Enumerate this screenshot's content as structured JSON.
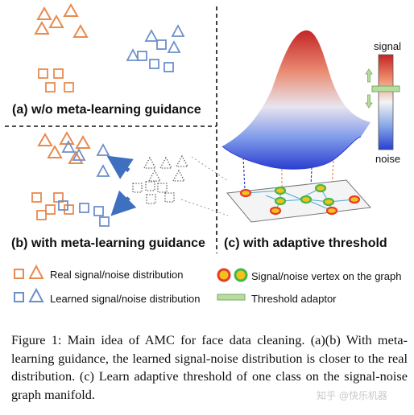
{
  "panels": {
    "a_label": "(a) w/o meta-learning guidance",
    "b_label": "(b) with meta-learning guidance",
    "c_label": "(c) with adaptive threshold"
  },
  "colorbar": {
    "top_label": "signal",
    "bottom_label": "noise"
  },
  "legend": {
    "real": "Real signal/noise distribution",
    "learned": "Learned signal/noise distribution",
    "vertex": "Signal/noise vertex on the graph",
    "threshold": "Threshold adaptor"
  },
  "colors": {
    "real": "#e98a4f",
    "learned": "#6f8fc9",
    "learned_light": "#9ab3dc",
    "arrow": "#3f6fbf",
    "noise_vertex": "#e83b2a",
    "signal_vertex": "#43b649",
    "vertex_fill": "#f2c21a",
    "threshold": "#b8dca0"
  },
  "caption": "Figure 1: Main idea of AMC for face data cleaning. (a)(b) With meta-learning guidance, the learned signal-noise distribution is closer to the real distribution. (c) Learn adaptive threshold of one class on the signal-noise graph manifold.",
  "watermark": "知乎 @快乐机器"
}
